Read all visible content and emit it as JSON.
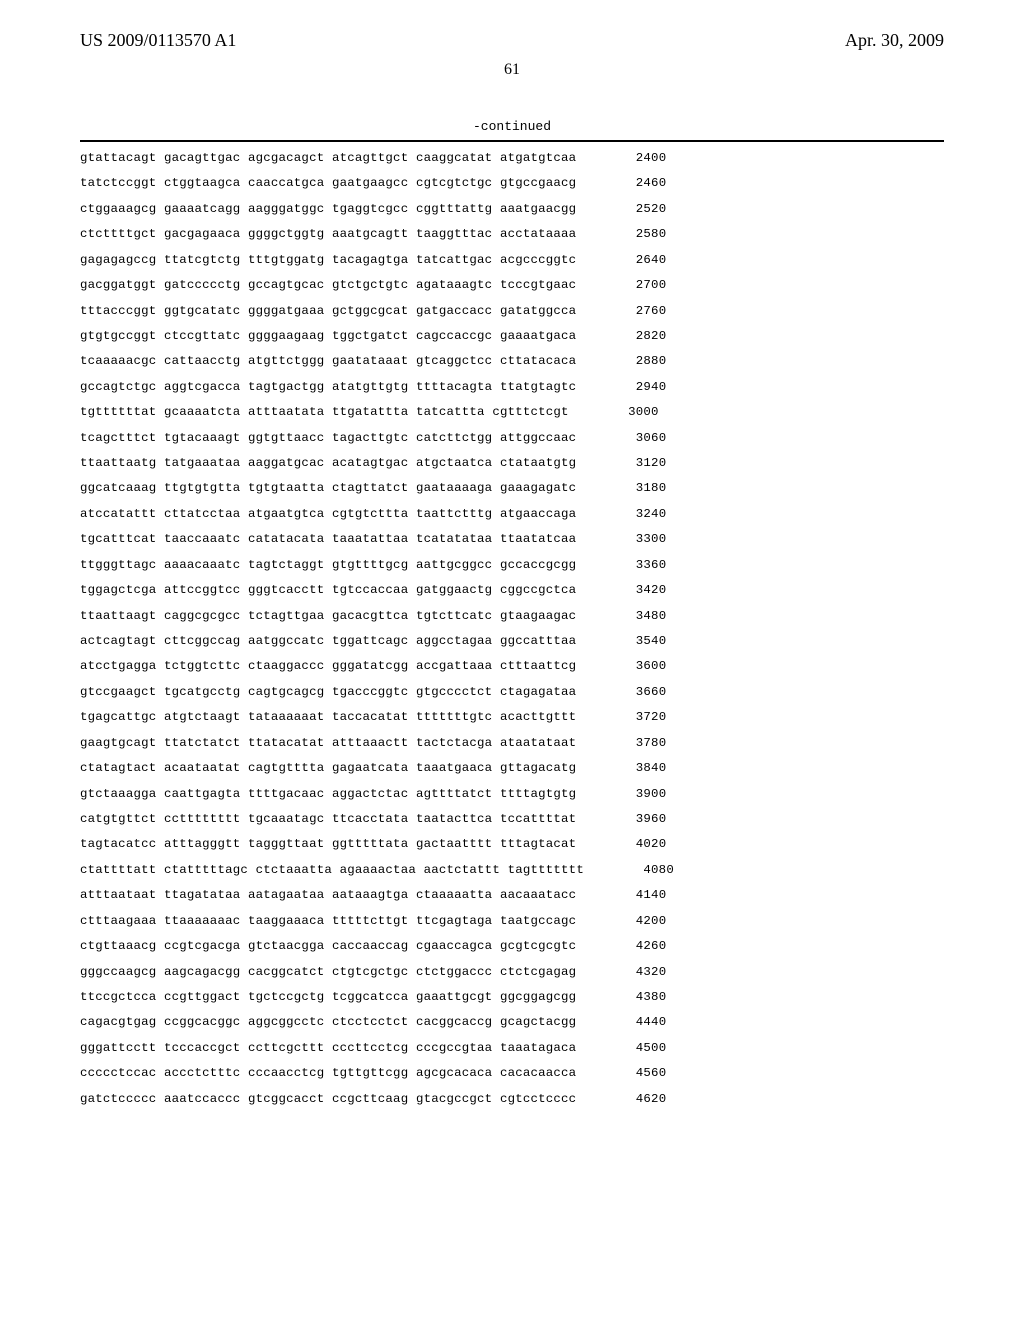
{
  "header": {
    "patent_number": "US 2009/0113570 A1",
    "date": "Apr. 30, 2009"
  },
  "page_number": "61",
  "continued_label": "-continued",
  "sequence": {
    "font_family": "Courier New",
    "font_size_pt": 9,
    "rows": [
      {
        "groups": [
          "gtattacagt",
          "gacagttgac",
          "agcgacagct",
          "atcagttgct",
          "caaggcatat",
          "atgatgtcaa"
        ],
        "pos": 2400
      },
      {
        "groups": [
          "tatctccggt",
          "ctggtaagca",
          "caaccatgca",
          "gaatgaagcc",
          "cgtcgtctgc",
          "gtgccgaacg"
        ],
        "pos": 2460
      },
      {
        "groups": [
          "ctggaaagcg",
          "gaaaatcagg",
          "aagggatggc",
          "tgaggtcgcc",
          "cggtttattg",
          "aaatgaacgg"
        ],
        "pos": 2520
      },
      {
        "groups": [
          "ctcttttgct",
          "gacgagaaca",
          "ggggctggtg",
          "aaatgcagtt",
          "taaggtttac",
          "acctataaaa"
        ],
        "pos": 2580
      },
      {
        "groups": [
          "gagagagccg",
          "ttatcgtctg",
          "tttgtggatg",
          "tacagagtga",
          "tatcattgac",
          "acgcccggtc"
        ],
        "pos": 2640
      },
      {
        "groups": [
          "gacggatggt",
          "gatccccctg",
          "gccagtgcac",
          "gtctgctgtc",
          "agataaagtc",
          "tcccgtgaac"
        ],
        "pos": 2700
      },
      {
        "groups": [
          "tttacccggt",
          "ggtgcatatc",
          "ggggatgaaa",
          "gctggcgcat",
          "gatgaccacc",
          "gatatggcca"
        ],
        "pos": 2760
      },
      {
        "groups": [
          "gtgtgccggt",
          "ctccgttatc",
          "ggggaagaag",
          "tggctgatct",
          "cagccaccgc",
          "gaaaatgaca"
        ],
        "pos": 2820
      },
      {
        "groups": [
          "tcaaaaacgc",
          "cattaacctg",
          "atgttctggg",
          "gaatataaat",
          "gtcaggctcc",
          "cttatacaca"
        ],
        "pos": 2880
      },
      {
        "groups": [
          "gccagtctgc",
          "aggtcgacca",
          "tagtgactgg",
          "atatgttgtg",
          "ttttacagta",
          "ttatgtagtc"
        ],
        "pos": 2940
      },
      {
        "groups": [
          "tgttttttat",
          "gcaaaatcta",
          "atttaatata",
          "ttgatattta",
          "tatcattta",
          "cgtttctcgt"
        ],
        "pos": 3000
      },
      {
        "groups": [
          "tcagctttct",
          "tgtacaaagt",
          "ggtgttaacc",
          "tagacttgtc",
          "catcttctgg",
          "attggccaac"
        ],
        "pos": 3060
      },
      {
        "groups": [
          "ttaattaatg",
          "tatgaaataa",
          "aaggatgcac",
          "acatagtgac",
          "atgctaatca",
          "ctataatgtg"
        ],
        "pos": 3120
      },
      {
        "groups": [
          "ggcatcaaag",
          "ttgtgtgtta",
          "tgtgtaatta",
          "ctagttatct",
          "gaataaaaga",
          "gaaagagatc"
        ],
        "pos": 3180
      },
      {
        "groups": [
          "atccatattt",
          "cttatcctaa",
          "atgaatgtca",
          "cgtgtcttta",
          "taattctttg",
          "atgaaccaga"
        ],
        "pos": 3240
      },
      {
        "groups": [
          "tgcatttcat",
          "taaccaaatc",
          "catatacata",
          "taaatattaa",
          "tcatatataa",
          "ttaatatcaa"
        ],
        "pos": 3300
      },
      {
        "groups": [
          "ttgggttagc",
          "aaaacaaatc",
          "tagtctaggt",
          "gtgttttgcg",
          "aattgcggcc",
          "gccaccgcgg"
        ],
        "pos": 3360
      },
      {
        "groups": [
          "tggagctcga",
          "attccggtcc",
          "gggtcacctt",
          "tgtccaccaa",
          "gatggaactg",
          "cggccgctca"
        ],
        "pos": 3420
      },
      {
        "groups": [
          "ttaattaagt",
          "caggcgcgcc",
          "tctagttgaa",
          "gacacgttca",
          "tgtcttcatc",
          "gtaagaagac"
        ],
        "pos": 3480
      },
      {
        "groups": [
          "actcagtagt",
          "cttcggccag",
          "aatggccatc",
          "tggattcagc",
          "aggcctagaa",
          "ggccatttaa"
        ],
        "pos": 3540
      },
      {
        "groups": [
          "atcctgagga",
          "tctggtcttc",
          "ctaaggaccc",
          "gggatatcgg",
          "accgattaaa",
          "ctttaattcg"
        ],
        "pos": 3600
      },
      {
        "groups": [
          "gtccgaagct",
          "tgcatgcctg",
          "cagtgcagcg",
          "tgacccggtc",
          "gtgcccctct",
          "ctagagataa"
        ],
        "pos": 3660
      },
      {
        "groups": [
          "tgagcattgc",
          "atgtctaagt",
          "tataaaaaat",
          "taccacatat",
          "tttttttgtc",
          "acacttgttt"
        ],
        "pos": 3720
      },
      {
        "groups": [
          "gaagtgcagt",
          "ttatctatct",
          "ttatacatat",
          "atttaaactt",
          "tactctacga",
          "ataatataat"
        ],
        "pos": 3780
      },
      {
        "groups": [
          "ctatagtact",
          "acaataatat",
          "cagtgtttta",
          "gagaatcata",
          "taaatgaaca",
          "gttagacatg"
        ],
        "pos": 3840
      },
      {
        "groups": [
          "gtctaaagga",
          "caattgagta",
          "ttttgacaac",
          "aggactctac",
          "agttttatct",
          "ttttagtgtg"
        ],
        "pos": 3900
      },
      {
        "groups": [
          "catgtgttct",
          "cctttttttt",
          "tgcaaatagc",
          "ttcacctata",
          "taatacttca",
          "tccattttat"
        ],
        "pos": 3960
      },
      {
        "groups": [
          "tagtacatcc",
          "atttagggtt",
          "tagggttaat",
          "ggtttttata",
          "gactaatttt",
          "tttagtacat"
        ],
        "pos": 4020
      },
      {
        "groups": [
          "ctattttatt",
          "ctatttttagc",
          "ctctaaatta",
          "agaaaactaa",
          "aactctattt",
          "tagttttttt"
        ],
        "pos": 4080
      },
      {
        "groups": [
          "atttaataat",
          "ttagatataa",
          "aatagaataa",
          "aataaagtga",
          "ctaaaaatta",
          "aacaaatacc"
        ],
        "pos": 4140
      },
      {
        "groups": [
          "ctttaagaaa",
          "ttaaaaaaac",
          "taaggaaaca",
          "tttttcttgt",
          "ttcgagtaga",
          "taatgccagc"
        ],
        "pos": 4200
      },
      {
        "groups": [
          "ctgttaaacg",
          "ccgtcgacga",
          "gtctaacgga",
          "caccaaccag",
          "cgaaccagca",
          "gcgtcgcgtc"
        ],
        "pos": 4260
      },
      {
        "groups": [
          "gggccaagcg",
          "aagcagacgg",
          "cacggcatct",
          "ctgtcgctgc",
          "ctctggaccc",
          "ctctcgagag"
        ],
        "pos": 4320
      },
      {
        "groups": [
          "ttccgctcca",
          "ccgttggact",
          "tgctccgctg",
          "tcggcatcca",
          "gaaattgcgt",
          "ggcggagcgg"
        ],
        "pos": 4380
      },
      {
        "groups": [
          "cagacgtgag",
          "ccggcacggc",
          "aggcggcctc",
          "ctcctcctct",
          "cacggcaccg",
          "gcagctacgg"
        ],
        "pos": 4440
      },
      {
        "groups": [
          "gggattcctt",
          "tcccaccgct",
          "ccttcgcttt",
          "cccttcctcg",
          "cccgccgtaa",
          "taaatagaca"
        ],
        "pos": 4500
      },
      {
        "groups": [
          "ccccctccac",
          "accctctttc",
          "cccaacctcg",
          "tgttgttcgg",
          "agcgcacaca",
          "cacacaacca"
        ],
        "pos": 4560
      },
      {
        "groups": [
          "gatctccccc",
          "aaatccaccc",
          "gtcggcacct",
          "ccgcttcaag",
          "gtacgccgct",
          "cgtcctcccc"
        ],
        "pos": 4620
      }
    ]
  }
}
